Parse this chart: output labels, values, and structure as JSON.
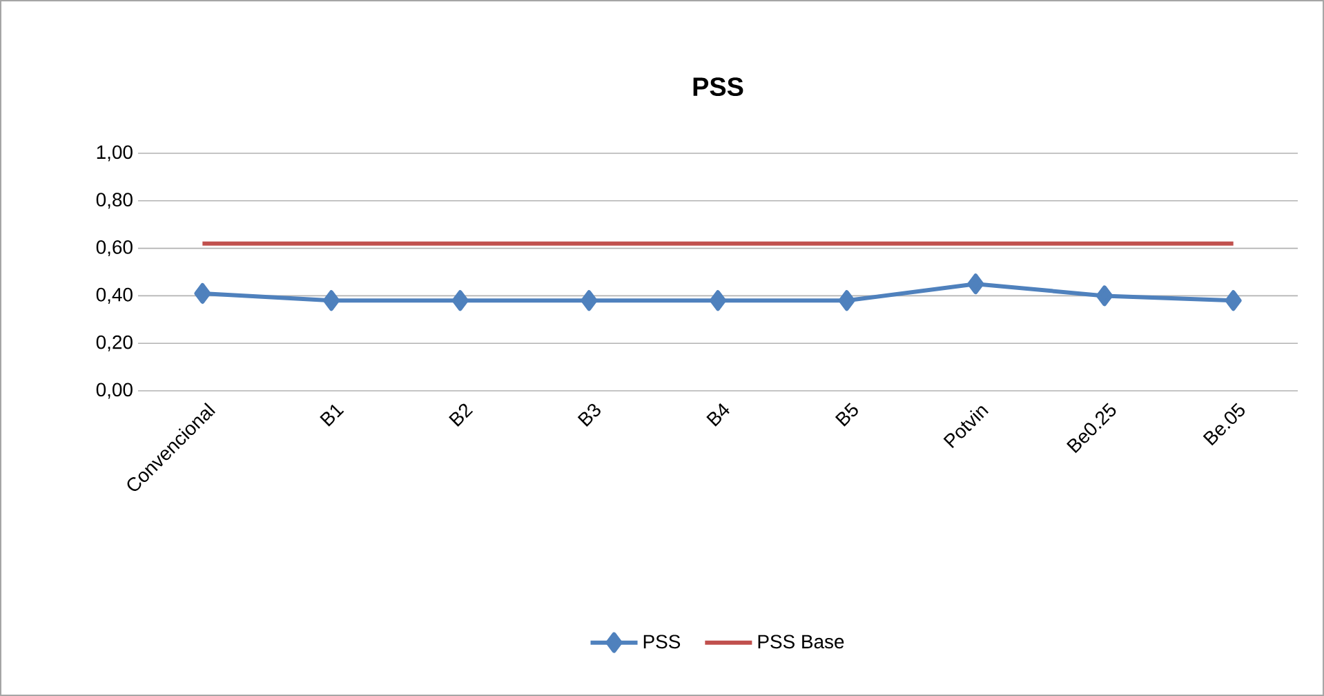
{
  "chart_data": {
    "type": "line",
    "title": "PSS",
    "categories": [
      "Convencional",
      "B1",
      "B2",
      "B3",
      "B4",
      "B5",
      "Potvin",
      "Be0.25",
      "Be.05"
    ],
    "series": [
      {
        "name": "PSS",
        "color": "#4f81bd",
        "marker": "diamond",
        "values": [
          0.41,
          0.38,
          0.38,
          0.38,
          0.38,
          0.38,
          0.45,
          0.4,
          0.38
        ]
      },
      {
        "name": "PSS  Base",
        "color": "#c0504d",
        "marker": "none",
        "values": [
          0.62,
          0.62,
          0.62,
          0.62,
          0.62,
          0.62,
          0.62,
          0.62,
          0.62
        ]
      }
    ],
    "ylim": [
      0,
      1
    ],
    "yticks": [
      {
        "value": 0,
        "label": "0,00"
      },
      {
        "value": 0.2,
        "label": "0,20"
      },
      {
        "value": 0.4,
        "label": "0,40"
      },
      {
        "value": 0.6,
        "label": "0,60"
      },
      {
        "value": 0.8,
        "label": "0,80"
      },
      {
        "value": 1,
        "label": "1,00"
      }
    ],
    "grid": "y",
    "legend": "bottom",
    "line_style": "solid"
  }
}
